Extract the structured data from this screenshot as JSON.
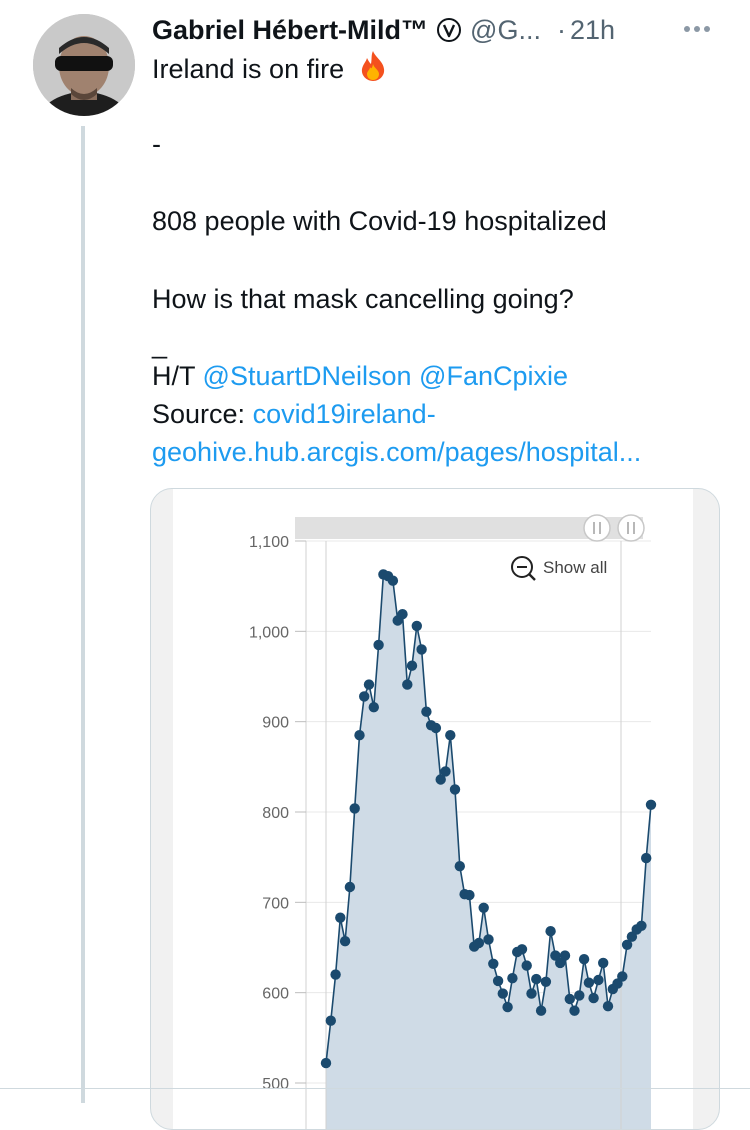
{
  "tweet": {
    "display_name": "Gabriel Hébert-Mild™",
    "handle": "@G...",
    "separator": "·",
    "time": "21h",
    "lines": {
      "line1": "Ireland is on fire",
      "dash1": "-",
      "hospitalized": "808 people with Covid-19 hospitalized",
      "mask": "How is that mask cancelling going?",
      "dash2": "_",
      "ht_label": "H/T",
      "mention1": "@StuartDNeilson",
      "mention2": "@FanCpixie",
      "source_label": "Source:",
      "source_link_1": "covid19ireland-",
      "source_link_2": "geohive.hub.arcgis.com/pages/hospital..."
    },
    "icons": {
      "verified": "verified-badge-icon",
      "more": "more-options-icon",
      "fire": "fire-emoji-icon"
    }
  },
  "colors": {
    "link": "#1d9bf0",
    "chart_line": "#1b4a6e",
    "chart_fill": "#cfdbe6"
  },
  "chart": {
    "show_all_label": "Show all",
    "y_ticks": [
      "1,100",
      "1,000",
      "900",
      "800",
      "700",
      "600",
      "500"
    ]
  },
  "chart_data": {
    "type": "area",
    "title": "",
    "xlabel": "",
    "ylabel": "",
    "ylim": [
      500,
      1100
    ],
    "grid": true,
    "series": [
      {
        "values": [
          522,
          569,
          620,
          683,
          657,
          717,
          804,
          885,
          928,
          941,
          916,
          985,
          1063,
          1061,
          1056,
          1012,
          1019,
          941,
          962,
          1006,
          980,
          911,
          896,
          893,
          836,
          845,
          885,
          825,
          740,
          709,
          708,
          651,
          655,
          694,
          659,
          632,
          613,
          599,
          584,
          616,
          645,
          648,
          630,
          599,
          615,
          580,
          612,
          668,
          641,
          633,
          641,
          593,
          580,
          597,
          637,
          611,
          594,
          614,
          633,
          585,
          604,
          610,
          618,
          653,
          662,
          670,
          674,
          749,
          808
        ]
      }
    ]
  }
}
